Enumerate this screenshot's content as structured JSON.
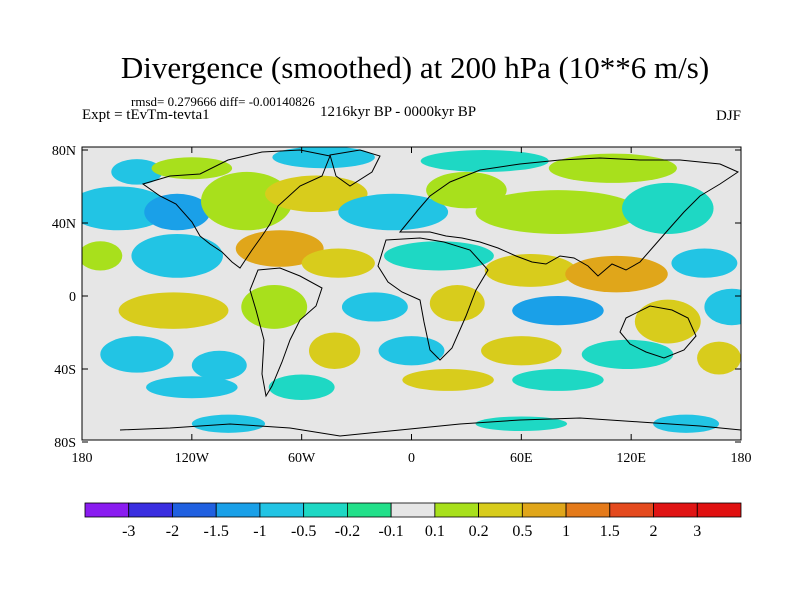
{
  "figure": {
    "title": "Divergence (smoothed) at 200 hPa (10**6 m/s)",
    "stats": "rmsd= 0.279666 diff= -0.00140826",
    "experiment": "Expt = tEvTm-tevta1",
    "period": "1216kyr BP - 0000kyr BP",
    "season": "DJF"
  },
  "axes": {
    "lat_labels": [
      "80N",
      "40N",
      "0",
      "40S",
      "80S"
    ],
    "lat_values": [
      80,
      40,
      0,
      -40,
      -80
    ],
    "lon_labels": [
      "180",
      "120W",
      "60W",
      "0",
      "60E",
      "120E",
      "180"
    ],
    "lon_values": [
      -180,
      -120,
      -60,
      0,
      60,
      120,
      180
    ]
  },
  "colorbar": {
    "labels": [
      "-3",
      "-2",
      "-1.5",
      "-1",
      "-0.5",
      "-0.2",
      "-0.1",
      "0.1",
      "0.2",
      "0.5",
      "1",
      "1.5",
      "2",
      "3"
    ],
    "colors": [
      "#8a1cf0",
      "#3a2ee0",
      "#2060e0",
      "#1aa0e8",
      "#22c4e4",
      "#1ed8c4",
      "#22e08a",
      "#e6e6e6",
      "#a8e01c",
      "#d8cc1c",
      "#e0a61a",
      "#e47a1a",
      "#e44a1e",
      "#e01414",
      "#e01010"
    ]
  },
  "blobs": [
    {
      "lon": -150,
      "lat": 68,
      "rx": 14,
      "ry": 7,
      "color": "#22c4e4"
    },
    {
      "lon": -120,
      "lat": 70,
      "rx": 22,
      "ry": 6,
      "color": "#a8e01c"
    },
    {
      "lon": -48,
      "lat": 76,
      "rx": 28,
      "ry": 6,
      "color": "#22c4e4"
    },
    {
      "lon": 40,
      "lat": 74,
      "rx": 35,
      "ry": 6,
      "color": "#1ed8c4"
    },
    {
      "lon": 110,
      "lat": 70,
      "rx": 35,
      "ry": 8,
      "color": "#a8e01c"
    },
    {
      "lon": -160,
      "lat": 48,
      "rx": 28,
      "ry": 12,
      "color": "#22c4e4"
    },
    {
      "lon": -128,
      "lat": 46,
      "rx": 18,
      "ry": 10,
      "color": "#1aa0e8"
    },
    {
      "lon": -90,
      "lat": 52,
      "rx": 25,
      "ry": 16,
      "color": "#a8e01c"
    },
    {
      "lon": -52,
      "lat": 56,
      "rx": 28,
      "ry": 10,
      "color": "#d8cc1c"
    },
    {
      "lon": -10,
      "lat": 46,
      "rx": 30,
      "ry": 10,
      "color": "#22c4e4"
    },
    {
      "lon": 30,
      "lat": 58,
      "rx": 22,
      "ry": 10,
      "color": "#a8e01c"
    },
    {
      "lon": 80,
      "lat": 46,
      "rx": 45,
      "ry": 12,
      "color": "#a8e01c"
    },
    {
      "lon": 140,
      "lat": 48,
      "rx": 25,
      "ry": 14,
      "color": "#1ed8c4"
    },
    {
      "lon": -170,
      "lat": 22,
      "rx": 12,
      "ry": 8,
      "color": "#a8e01c"
    },
    {
      "lon": -128,
      "lat": 22,
      "rx": 25,
      "ry": 12,
      "color": "#22c4e4"
    },
    {
      "lon": -72,
      "lat": 26,
      "rx": 24,
      "ry": 10,
      "color": "#e0a61a"
    },
    {
      "lon": -40,
      "lat": 18,
      "rx": 20,
      "ry": 8,
      "color": "#d8cc1c"
    },
    {
      "lon": 15,
      "lat": 22,
      "rx": 30,
      "ry": 8,
      "color": "#1ed8c4"
    },
    {
      "lon": 65,
      "lat": 14,
      "rx": 25,
      "ry": 9,
      "color": "#d8cc1c"
    },
    {
      "lon": 112,
      "lat": 12,
      "rx": 28,
      "ry": 10,
      "color": "#e0a61a"
    },
    {
      "lon": 160,
      "lat": 18,
      "rx": 18,
      "ry": 8,
      "color": "#22c4e4"
    },
    {
      "lon": -130,
      "lat": -8,
      "rx": 30,
      "ry": 10,
      "color": "#d8cc1c"
    },
    {
      "lon": -75,
      "lat": -6,
      "rx": 18,
      "ry": 12,
      "color": "#a8e01c"
    },
    {
      "lon": -20,
      "lat": -6,
      "rx": 18,
      "ry": 8,
      "color": "#22c4e4"
    },
    {
      "lon": 25,
      "lat": -4,
      "rx": 15,
      "ry": 10,
      "color": "#d8cc1c"
    },
    {
      "lon": 80,
      "lat": -8,
      "rx": 25,
      "ry": 8,
      "color": "#1aa0e8"
    },
    {
      "lon": 140,
      "lat": -14,
      "rx": 18,
      "ry": 12,
      "color": "#d8cc1c"
    },
    {
      "lon": 175,
      "lat": -6,
      "rx": 15,
      "ry": 10,
      "color": "#22c4e4"
    },
    {
      "lon": -150,
      "lat": -32,
      "rx": 20,
      "ry": 10,
      "color": "#22c4e4"
    },
    {
      "lon": -105,
      "lat": -38,
      "rx": 15,
      "ry": 8,
      "color": "#22c4e4"
    },
    {
      "lon": -42,
      "lat": -30,
      "rx": 14,
      "ry": 10,
      "color": "#d8cc1c"
    },
    {
      "lon": 0,
      "lat": -30,
      "rx": 18,
      "ry": 8,
      "color": "#22c4e4"
    },
    {
      "lon": 60,
      "lat": -30,
      "rx": 22,
      "ry": 8,
      "color": "#d8cc1c"
    },
    {
      "lon": 118,
      "lat": -32,
      "rx": 25,
      "ry": 8,
      "color": "#1ed8c4"
    },
    {
      "lon": 168,
      "lat": -34,
      "rx": 12,
      "ry": 9,
      "color": "#d8cc1c"
    },
    {
      "lon": -120,
      "lat": -50,
      "rx": 25,
      "ry": 6,
      "color": "#22c4e4"
    },
    {
      "lon": 20,
      "lat": -46,
      "rx": 25,
      "ry": 6,
      "color": "#d8cc1c"
    },
    {
      "lon": 80,
      "lat": -46,
      "rx": 25,
      "ry": 6,
      "color": "#1ed8c4"
    },
    {
      "lon": -60,
      "lat": -50,
      "rx": 18,
      "ry": 7,
      "color": "#1ed8c4"
    },
    {
      "lon": -100,
      "lat": -70,
      "rx": 20,
      "ry": 5,
      "color": "#22c4e4"
    },
    {
      "lon": 60,
      "lat": -70,
      "rx": 25,
      "ry": 4,
      "color": "#1ed8c4"
    },
    {
      "lon": 150,
      "lat": -70,
      "rx": 18,
      "ry": 5,
      "color": "#22c4e4"
    }
  ]
}
